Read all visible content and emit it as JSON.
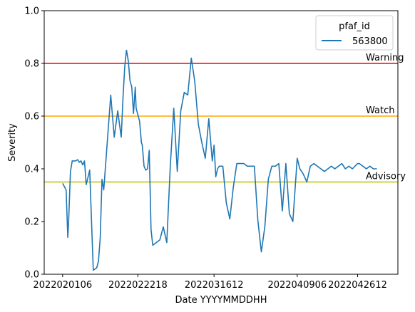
{
  "chart_data": {
    "type": "line",
    "title": "",
    "xlabel": "Date YYYYMMDDHH",
    "ylabel": "Severity",
    "ylim": [
      0,
      1
    ],
    "xlim": [
      2022012700,
      2022050800
    ],
    "x_ticks": [
      {
        "label": "2022020106",
        "value": 2022020106
      },
      {
        "label": "2022022218",
        "value": 2022022218
      },
      {
        "label": "2022031612",
        "value": 2022031612
      },
      {
        "label": "2022040906",
        "value": 2022040906
      },
      {
        "label": "2022042612",
        "value": 2022042612
      }
    ],
    "y_ticks": [
      0.0,
      0.2,
      0.4,
      0.6,
      0.8,
      1.0
    ],
    "y_tick_labels": [
      "0.0",
      "0.2",
      "0.4",
      "0.6",
      "0.8",
      "1.0"
    ],
    "grid": false,
    "legend": {
      "title": "pfaf_id",
      "placement": "upper right"
    },
    "series": [
      {
        "name": "563800",
        "color": "#1f77b4",
        "x": [
          2022020106,
          2022020206,
          2022020218,
          2022020300,
          2022020312,
          2022020400,
          2022020412,
          2022020500,
          2022020512,
          2022020600,
          2022020612,
          2022020700,
          2022020712,
          2022020800,
          2022020900,
          2022021000,
          2022021100,
          2022021112,
          2022021200,
          2022021212,
          2022021300,
          2022021400,
          2022021500,
          2022021600,
          2022021700,
          2022021800,
          2022021812,
          2022021900,
          2022021912,
          2022022000,
          2022022012,
          2022022100,
          2022022112,
          2022022200,
          2022022206,
          2022022218,
          2022022306,
          2022022318,
          2022022400,
          2022022412,
          2022022500,
          2022022512,
          2022022600,
          2022022612,
          2022022700,
          2022022800,
          2022030100,
          2022030200,
          2022030300,
          2022030400,
          2022030500,
          2022030600,
          2022030700,
          2022030800,
          2022030900,
          2022031000,
          2022031100,
          2022031200,
          2022031300,
          2022031400,
          2022031500,
          2022031600,
          2022031612,
          2022031700,
          2022031712,
          2022031800,
          2022031900,
          2022032000,
          2022032100,
          2022032200,
          2022032300,
          2022032400,
          2022032500,
          2022032600,
          2022032700,
          2022032800,
          2022032900,
          2022033000,
          2022033100,
          2022040100,
          2022040200,
          2022040300,
          2022040400,
          2022040500,
          2022040600,
          2022040700,
          2022040800,
          2022040906,
          2022041000,
          2022041100,
          2022041200,
          2022041300,
          2022041400,
          2022041500,
          2022041600,
          2022041700,
          2022041800,
          2022041900,
          2022042000,
          2022042100,
          2022042200,
          2022042300,
          2022042400,
          2022042500,
          2022042612,
          2022042700,
          2022042800,
          2022042900,
          2022043000,
          2022050100,
          2022050200
        ],
        "y": [
          0.345,
          0.32,
          0.14,
          0.21,
          0.39,
          0.43,
          0.43,
          0.43,
          0.435,
          0.425,
          0.43,
          0.415,
          0.43,
          0.34,
          0.395,
          0.015,
          0.025,
          0.05,
          0.14,
          0.36,
          0.32,
          0.5,
          0.68,
          0.52,
          0.62,
          0.52,
          0.67,
          0.79,
          0.85,
          0.81,
          0.735,
          0.71,
          0.61,
          0.71,
          0.63,
          0.605,
          0.58,
          0.5,
          0.49,
          0.41,
          0.395,
          0.4,
          0.47,
          0.17,
          0.11,
          0.12,
          0.13,
          0.18,
          0.12,
          0.41,
          0.63,
          0.39,
          0.62,
          0.69,
          0.68,
          0.82,
          0.73,
          0.57,
          0.5,
          0.44,
          0.59,
          0.43,
          0.49,
          0.37,
          0.4,
          0.41,
          0.41,
          0.27,
          0.21,
          0.33,
          0.42,
          0.42,
          0.42,
          0.41,
          0.41,
          0.41,
          0.205,
          0.085,
          0.18,
          0.36,
          0.41,
          0.41,
          0.42,
          0.24,
          0.42,
          0.23,
          0.2,
          0.44,
          0.4,
          0.38,
          0.35,
          0.41,
          0.42,
          0.41,
          0.4,
          0.39,
          0.4,
          0.41,
          0.4,
          0.41,
          0.42,
          0.4,
          0.41,
          0.4,
          0.42,
          0.42,
          0.41,
          0.4,
          0.41,
          0.4,
          0.4
        ]
      }
    ],
    "thresholds": [
      {
        "label": "Warning",
        "value": 0.8,
        "color": "#ff0000"
      },
      {
        "label": "Watch",
        "value": 0.6,
        "color": "#ffa500"
      },
      {
        "label": "Advisory",
        "value": 0.35,
        "color": "#bfbf00"
      }
    ]
  }
}
